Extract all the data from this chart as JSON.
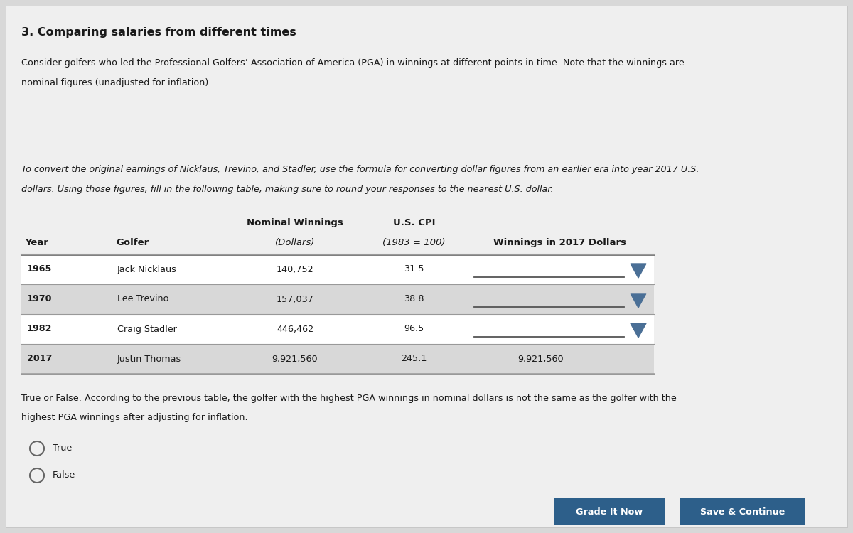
{
  "title": "3. Comparing salaries from different times",
  "bg_color": "#d8d8d8",
  "content_bg": "#efefef",
  "para1_line1": "Consider golfers who led the Professional Golfers’ Association of America (PGA) in winnings at different points in time. Note that the winnings are",
  "para1_line2": "nominal figures (unadjusted for inflation).",
  "para2_line1": "To convert the original earnings of Nicklaus, Trevino, and Stadler, use the formula for converting dollar figures from an earlier era into year 2017 U.S.",
  "para2_line2": "dollars. Using those figures, fill in the following table, making sure to round your responses to the nearest U.S. dollar.",
  "true_false_q1": "True or False: According to the previous table, the golfer with the highest PGA winnings in nominal dollars is not the same as the golfer with the",
  "true_false_q2": "highest PGA winnings after adjusting for inflation.",
  "option_true": "True",
  "option_false": "False",
  "btn_grade": "Grade It Now",
  "btn_save": "Save & Continue",
  "btn_color": "#2d5f8a",
  "btn_text_color": "#ffffff",
  "table_row_colors": [
    "#ffffff",
    "#d8d8d8",
    "#ffffff",
    "#d8d8d8"
  ],
  "table_border_color": "#999999",
  "text_color": "#1a1a1a",
  "italic_text_color": "#1a1a1a",
  "dropdown_color": "#4a6f96",
  "header_line_color": "#555555",
  "col_header_bold": "#1a1a1a"
}
